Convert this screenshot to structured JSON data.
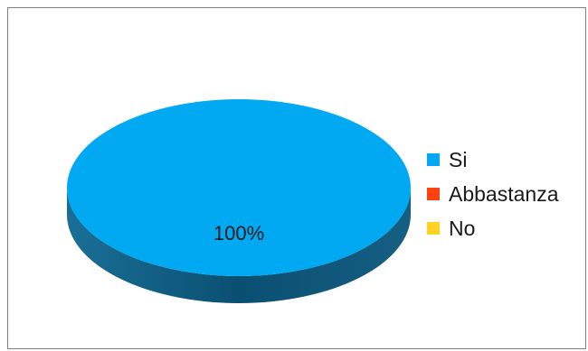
{
  "chart_data": {
    "type": "pie",
    "title": "",
    "categories": [
      "Si",
      "Abbastanza",
      "No"
    ],
    "values": [
      100,
      0,
      0
    ],
    "data_labels": [
      "100%"
    ],
    "colors": [
      "#00a9f1",
      "#ff420e",
      "#ffd320"
    ],
    "legend_position": "right",
    "style": "3d"
  }
}
